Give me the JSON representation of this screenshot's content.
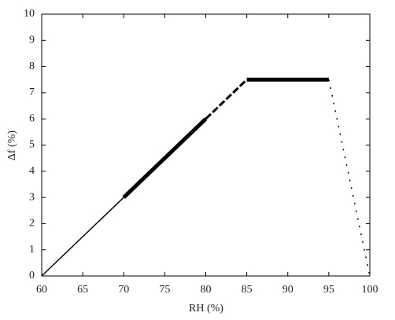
{
  "chart_data": {
    "type": "line",
    "xlabel": "RH  (%)",
    "ylabel": "Δf (%)",
    "xlim": [
      60,
      100
    ],
    "xticks": [
      60,
      65,
      70,
      75,
      80,
      85,
      90,
      95,
      100
    ],
    "ylim": [
      0,
      10
    ],
    "yticks": [
      0,
      1,
      2,
      3,
      4,
      5,
      6,
      7,
      8,
      9,
      10
    ],
    "grid": false,
    "series": [
      {
        "color": "#000000",
        "style": "solid",
        "width": 1.5,
        "x": [
          60,
          70
        ],
        "values": [
          0,
          3
        ]
      },
      {
        "color": "#000000",
        "style": "solid",
        "width": 5,
        "x": [
          70,
          80
        ],
        "values": [
          3,
          6
        ]
      },
      {
        "color": "#000000",
        "style": "dashed",
        "width": 3,
        "x": [
          80,
          85
        ],
        "values": [
          6,
          7.5
        ]
      },
      {
        "color": "#000000",
        "style": "solid",
        "width": 5,
        "x": [
          85,
          95
        ],
        "values": [
          7.5,
          7.5
        ]
      },
      {
        "color": "#000000",
        "style": "dotted",
        "width": 1.5,
        "x": [
          95,
          100
        ],
        "values": [
          7.5,
          0
        ]
      }
    ]
  }
}
